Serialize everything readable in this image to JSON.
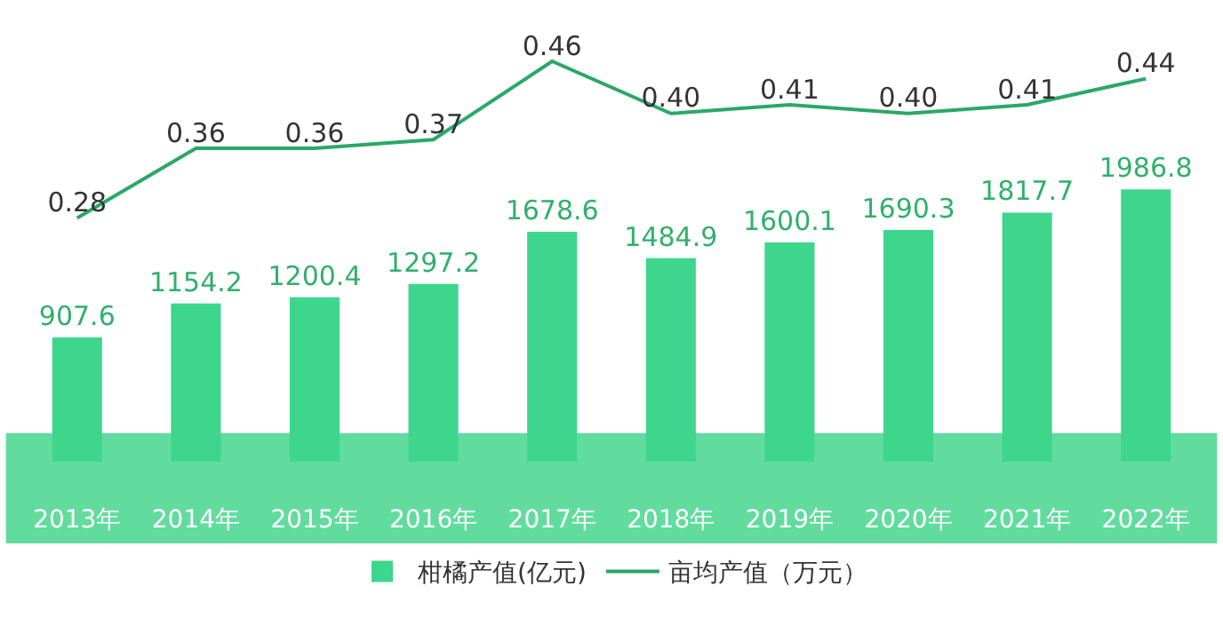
{
  "chart_data": {
    "type": "bar",
    "categories": [
      "2013年",
      "2014年",
      "2015年",
      "2016年",
      "2017年",
      "2018年",
      "2019年",
      "2020年",
      "2021年",
      "2022年"
    ],
    "series": [
      {
        "name": "柑橘产值(亿元)",
        "color": "#3dd68c",
        "values": [
          907.6,
          1154.2,
          1200.4,
          1297.2,
          1678.6,
          1484.9,
          1600.1,
          1690.3,
          1817.7,
          1986.8
        ]
      },
      {
        "name": "亩均产值（万元）",
        "type": "line",
        "axis": "y2",
        "color": "#2aa866",
        "values": [
          0.28,
          0.36,
          0.36,
          0.37,
          0.46,
          0.4,
          0.41,
          0.4,
          0.41,
          0.44
        ],
        "value_labels": [
          "0.28",
          "0.36",
          "0.36",
          "0.37",
          "0.46",
          "0.40",
          "0.41",
          "0.40",
          "0.41",
          "0.44"
        ]
      }
    ],
    "data_labels": true,
    "legend": "bottom",
    "tick_labels": "x"
  }
}
